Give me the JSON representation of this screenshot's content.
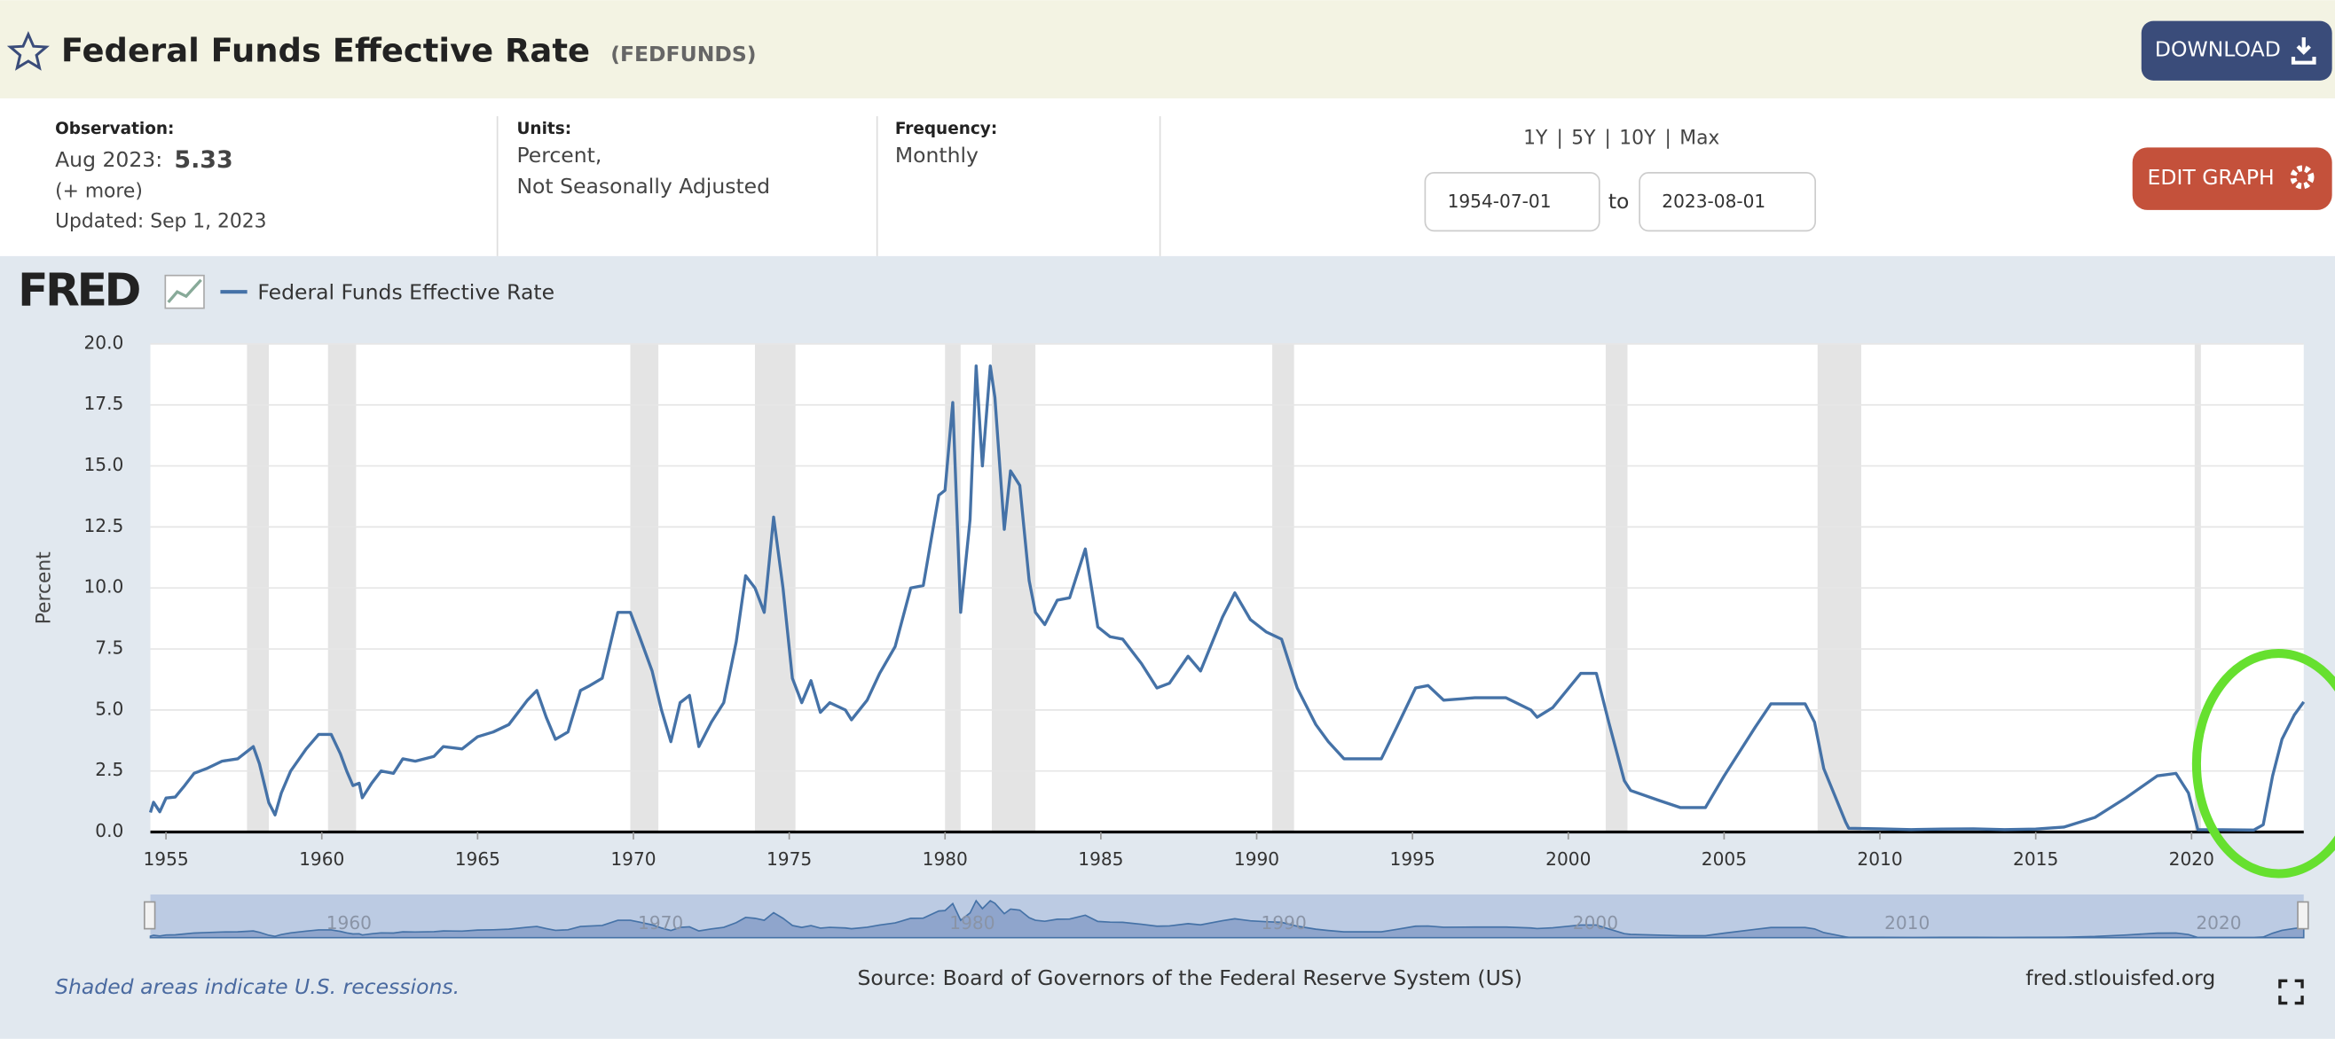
{
  "header": {
    "title": "Federal Funds Effective Rate",
    "series_id": "(FEDFUNDS)",
    "download": "DOWNLOAD"
  },
  "meta": {
    "observation_label": "Observation:",
    "observation_date": "Aug 2023:",
    "observation_value": "5.33",
    "more": "(+ more)",
    "updated": "Updated: Sep 1, 2023",
    "units_label": "Units:",
    "units": "Percent,",
    "units2": "Not Seasonally Adjusted",
    "frequency_label": "Frequency:",
    "frequency": "Monthly",
    "ranges": [
      "1Y",
      "5Y",
      "10Y",
      "Max"
    ],
    "start": "1954-07-01",
    "to": "to",
    "end": "2023-08-01",
    "edit": "EDIT GRAPH"
  },
  "chart_data": {
    "type": "line",
    "logo": "FRED",
    "ylabel": "Percent",
    "xlim": [
      1954.5,
      2023.6
    ],
    "ylim": [
      0,
      20
    ],
    "xticks": [
      1955,
      1960,
      1965,
      1970,
      1975,
      1980,
      1985,
      1990,
      1995,
      2000,
      2005,
      2010,
      2015,
      2020
    ],
    "yticks": [
      {
        "value": 0,
        "label": "0.0"
      },
      {
        "value": 2.5,
        "label": "2.5"
      },
      {
        "value": 5,
        "label": "5.0"
      },
      {
        "value": 7.5,
        "label": "7.5"
      },
      {
        "value": 10,
        "label": "10.0"
      },
      {
        "value": 12.5,
        "label": "12.5"
      },
      {
        "value": 15,
        "label": "15.0"
      },
      {
        "value": 17.5,
        "label": "17.5"
      },
      {
        "value": 20,
        "label": "20.0"
      }
    ],
    "nav_ticks": [
      1960,
      1970,
      1980,
      1990,
      2000,
      2010,
      2020
    ],
    "recessions": [
      [
        1957.6,
        1958.3
      ],
      [
        1960.2,
        1961.1
      ],
      [
        1969.9,
        1970.8
      ],
      [
        1973.9,
        1975.2
      ],
      [
        1980.0,
        1980.5
      ],
      [
        1981.5,
        1982.9
      ],
      [
        1990.5,
        1991.2
      ],
      [
        2001.2,
        2001.9
      ],
      [
        2008.0,
        2009.4
      ],
      [
        2020.1,
        2020.3
      ]
    ],
    "recession_note": "Shaded areas indicate U.S. recessions.",
    "source": "Source: Board of Governors of the Federal Reserve System (US)",
    "site": "fred.stlouisfed.org",
    "x": [
      1954.5,
      1954.6,
      1954.8,
      1955.0,
      1955.3,
      1955.6,
      1955.9,
      1956.3,
      1956.8,
      1957.3,
      1957.8,
      1958.0,
      1958.3,
      1958.5,
      1958.7,
      1959.0,
      1959.5,
      1959.9,
      1960.3,
      1960.6,
      1960.8,
      1961.0,
      1961.2,
      1961.3,
      1961.6,
      1961.9,
      1962.3,
      1962.6,
      1963.0,
      1963.6,
      1963.9,
      1964.5,
      1965.0,
      1965.5,
      1966.0,
      1966.6,
      1966.9,
      1967.2,
      1967.5,
      1967.9,
      1968.3,
      1968.6,
      1969.0,
      1969.5,
      1969.9,
      1970.2,
      1970.6,
      1970.9,
      1971.2,
      1971.5,
      1971.8,
      1972.1,
      1972.5,
      1972.9,
      1973.3,
      1973.6,
      1973.9,
      1974.2,
      1974.5,
      1974.8,
      1975.1,
      1975.4,
      1975.7,
      1976.0,
      1976.3,
      1976.8,
      1977.0,
      1977.5,
      1977.9,
      1978.4,
      1978.9,
      1979.3,
      1979.8,
      1980.0,
      1980.25,
      1980.5,
      1980.8,
      1981.0,
      1981.2,
      1981.45,
      1981.6,
      1981.9,
      1982.1,
      1982.4,
      1982.7,
      1982.9,
      1983.2,
      1983.6,
      1984.0,
      1984.5,
      1984.9,
      1985.3,
      1985.7,
      1986.3,
      1986.8,
      1987.2,
      1987.8,
      1988.2,
      1988.9,
      1989.3,
      1989.8,
      1990.3,
      1990.8,
      1991.3,
      1991.9,
      1992.3,
      1992.8,
      1993.5,
      1994.0,
      1994.5,
      1995.1,
      1995.5,
      1996.0,
      1997.0,
      1998.0,
      1998.8,
      1999.0,
      1999.5,
      2000.4,
      2000.9,
      2001.3,
      2001.8,
      2002.0,
      2002.9,
      2003.6,
      2004.4,
      2005.0,
      2006.0,
      2006.5,
      2007.6,
      2007.9,
      2008.2,
      2008.9,
      2009.0,
      2010.0,
      2011.0,
      2012.0,
      2013.0,
      2014.0,
      2015.0,
      2015.9,
      2016.9,
      2017.9,
      2018.9,
      2019.5,
      2019.9,
      2020.2,
      2021.0,
      2022.0,
      2022.3,
      2022.6,
      2022.9,
      2023.3,
      2023.6
    ],
    "series": [
      {
        "name": "Federal Funds Effective Rate",
        "color": "#4572a7",
        "values": [
          0.8,
          1.22,
          0.83,
          1.39,
          1.43,
          1.9,
          2.4,
          2.6,
          2.9,
          3.0,
          3.5,
          2.8,
          1.2,
          0.7,
          1.6,
          2.5,
          3.4,
          4.0,
          4.0,
          3.2,
          2.5,
          1.9,
          2.0,
          1.4,
          2.0,
          2.5,
          2.4,
          3.0,
          2.9,
          3.1,
          3.5,
          3.4,
          3.9,
          4.1,
          4.4,
          5.4,
          5.8,
          4.7,
          3.8,
          4.1,
          5.8,
          6.0,
          6.3,
          9.0,
          9.0,
          8.0,
          6.6,
          5.0,
          3.7,
          5.3,
          5.6,
          3.5,
          4.5,
          5.3,
          7.8,
          10.5,
          10.0,
          9.0,
          12.9,
          10.0,
          6.3,
          5.3,
          6.2,
          4.9,
          5.3,
          5.0,
          4.6,
          5.4,
          6.5,
          7.6,
          10.0,
          10.1,
          13.8,
          14.0,
          17.6,
          9.0,
          12.8,
          19.1,
          15.0,
          19.1,
          17.8,
          12.4,
          14.8,
          14.2,
          10.3,
          9.0,
          8.5,
          9.5,
          9.6,
          11.6,
          8.4,
          8.0,
          7.9,
          6.9,
          5.9,
          6.1,
          7.2,
          6.6,
          8.8,
          9.8,
          8.7,
          8.2,
          7.9,
          5.9,
          4.4,
          3.7,
          3.0,
          3.0,
          3.0,
          4.3,
          5.9,
          6.0,
          5.4,
          5.5,
          5.5,
          5.0,
          4.7,
          5.1,
          6.5,
          6.5,
          4.5,
          2.1,
          1.7,
          1.3,
          1.0,
          1.0,
          2.3,
          4.3,
          5.25,
          5.25,
          4.5,
          2.6,
          0.4,
          0.15,
          0.13,
          0.1,
          0.12,
          0.13,
          0.1,
          0.12,
          0.2,
          0.6,
          1.4,
          2.3,
          2.4,
          1.6,
          0.1,
          0.09,
          0.08,
          0.3,
          2.3,
          3.8,
          4.8,
          5.33
        ]
      }
    ]
  }
}
